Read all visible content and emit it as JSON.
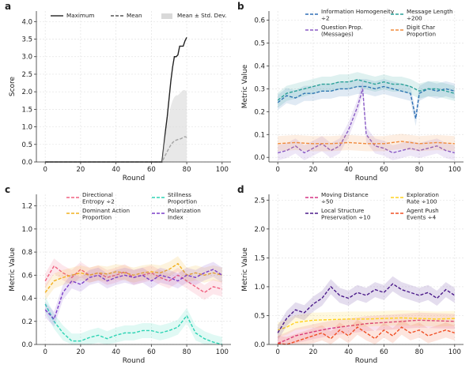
{
  "chart_data": [
    {
      "type": "line",
      "panel_label": "a",
      "xlabel": "Round",
      "ylabel": "Score",
      "xlim": [
        -5,
        105
      ],
      "ylim": [
        0,
        4.3
      ],
      "xticks": [
        0,
        20,
        40,
        60,
        80,
        100
      ],
      "yticks": [
        0.0,
        0.5,
        1.0,
        1.5,
        2.0,
        2.5,
        3.0,
        3.5,
        4.0
      ],
      "grid": true,
      "legend": "top",
      "series": [
        {
          "name": "Maximum",
          "color": "#222222",
          "style": "solid",
          "x": [
            0,
            66,
            67,
            68,
            69,
            70,
            71,
            72,
            73,
            74,
            75,
            76,
            77,
            78,
            79,
            80
          ],
          "y": [
            0,
            0,
            0.45,
            0.9,
            1.3,
            1.8,
            2.3,
            2.7,
            3.0,
            3.0,
            3.05,
            3.3,
            3.3,
            3.3,
            3.45,
            3.55
          ]
        },
        {
          "name": "Mean",
          "color": "#555555",
          "style": "dashed",
          "x": [
            0,
            66,
            67,
            68,
            69,
            70,
            71,
            72,
            73,
            74,
            75,
            76,
            77,
            78,
            79,
            80
          ],
          "y": [
            0,
            0,
            0.1,
            0.2,
            0.3,
            0.4,
            0.48,
            0.55,
            0.6,
            0.62,
            0.64,
            0.65,
            0.67,
            0.7,
            0.72,
            0.7
          ]
        },
        {
          "name": "Mean ± Std. Dev.",
          "color": "#d9d9d9",
          "style": "band",
          "x": [
            66,
            67,
            68,
            69,
            70,
            71,
            72,
            73,
            74,
            75,
            76,
            77,
            78,
            79,
            80
          ],
          "upper": [
            0,
            0.45,
            0.8,
            1.1,
            1.4,
            1.6,
            1.75,
            1.85,
            1.9,
            1.9,
            1.95,
            2.0,
            2.05,
            2.05,
            2.0
          ],
          "lower": [
            0,
            0,
            0,
            0,
            0,
            0,
            0,
            0,
            0,
            0,
            0,
            0,
            0,
            0,
            0
          ]
        }
      ]
    },
    {
      "type": "line",
      "panel_label": "b",
      "xlabel": "Round",
      "ylabel": "Metric Value",
      "xlim": [
        -5,
        105
      ],
      "ylim": [
        -0.02,
        0.64
      ],
      "xticks": [
        0,
        20,
        40,
        60,
        80,
        100
      ],
      "yticks": [
        0.0,
        0.1,
        0.2,
        0.3,
        0.4,
        0.5,
        0.6
      ],
      "grid": true,
      "legend": "top",
      "series": [
        {
          "name": "Information Homogeneity ÷2",
          "color": "#2f6fb5",
          "x": [
            0,
            5,
            10,
            15,
            20,
            25,
            30,
            35,
            40,
            45,
            50,
            55,
            60,
            65,
            70,
            75,
            78,
            80,
            85,
            90,
            95,
            100
          ],
          "y": [
            0.24,
            0.27,
            0.26,
            0.28,
            0.28,
            0.29,
            0.29,
            0.3,
            0.3,
            0.31,
            0.31,
            0.3,
            0.31,
            0.3,
            0.29,
            0.28,
            0.17,
            0.28,
            0.3,
            0.29,
            0.3,
            0.29
          ]
        },
        {
          "name": "Message Length ÷200",
          "color": "#2aa198",
          "x": [
            0,
            5,
            10,
            15,
            20,
            25,
            30,
            35,
            40,
            45,
            50,
            55,
            60,
            65,
            70,
            75,
            80,
            85,
            90,
            95,
            100
          ],
          "y": [
            0.25,
            0.28,
            0.29,
            0.3,
            0.31,
            0.32,
            0.32,
            0.33,
            0.33,
            0.34,
            0.33,
            0.32,
            0.33,
            0.32,
            0.32,
            0.31,
            0.29,
            0.3,
            0.3,
            0.29,
            0.28
          ]
        },
        {
          "name": "Question Prop. (Messages)",
          "color": "#8a5cc6",
          "x": [
            0,
            5,
            10,
            15,
            20,
            25,
            30,
            35,
            40,
            45,
            48,
            50,
            55,
            60,
            65,
            70,
            75,
            80,
            85,
            90,
            95,
            100
          ],
          "y": [
            0.02,
            0.03,
            0.05,
            0.02,
            0.04,
            0.06,
            0.03,
            0.05,
            0.12,
            0.22,
            0.3,
            0.1,
            0.05,
            0.04,
            0.02,
            0.03,
            0.04,
            0.03,
            0.04,
            0.05,
            0.03,
            0.02
          ]
        },
        {
          "name": "Digit Char Proportion",
          "color": "#f08a3c",
          "x": [
            0,
            10,
            20,
            30,
            40,
            50,
            60,
            70,
            80,
            90,
            100
          ],
          "y": [
            0.06,
            0.065,
            0.06,
            0.06,
            0.065,
            0.06,
            0.06,
            0.07,
            0.06,
            0.065,
            0.06
          ]
        }
      ]
    },
    {
      "type": "line",
      "panel_label": "c",
      "xlabel": "Round",
      "ylabel": "Metric Value",
      "xlim": [
        -5,
        105
      ],
      "ylim": [
        0,
        1.3
      ],
      "xticks": [
        0,
        20,
        40,
        60,
        80,
        100
      ],
      "yticks": [
        0.0,
        0.2,
        0.4,
        0.6,
        0.8,
        1.0,
        1.2
      ],
      "grid": true,
      "legend": "top",
      "series": [
        {
          "name": "Directional Entropy ÷2",
          "color": "#f06080",
          "x": [
            0,
            5,
            10,
            15,
            20,
            25,
            30,
            35,
            40,
            45,
            50,
            55,
            60,
            65,
            70,
            75,
            80,
            85,
            90,
            95,
            100
          ],
          "y": [
            0.55,
            0.68,
            0.62,
            0.58,
            0.65,
            0.6,
            0.62,
            0.58,
            0.6,
            0.63,
            0.58,
            0.6,
            0.62,
            0.58,
            0.55,
            0.6,
            0.55,
            0.5,
            0.45,
            0.5,
            0.48
          ]
        },
        {
          "name": "Stillness Proportion",
          "color": "#2dd4b4",
          "x": [
            0,
            5,
            10,
            15,
            20,
            25,
            30,
            35,
            40,
            45,
            50,
            55,
            60,
            65,
            70,
            75,
            80,
            85,
            90,
            95,
            100
          ],
          "y": [
            0.35,
            0.2,
            0.1,
            0.03,
            0.03,
            0.06,
            0.08,
            0.05,
            0.08,
            0.1,
            0.1,
            0.12,
            0.12,
            0.1,
            0.12,
            0.15,
            0.25,
            0.1,
            0.05,
            0.02,
            0.0
          ]
        },
        {
          "name": "Dominant Action Proportion",
          "color": "#f2b01e",
          "x": [
            0,
            5,
            10,
            15,
            20,
            25,
            30,
            35,
            40,
            45,
            50,
            55,
            60,
            65,
            70,
            75,
            80,
            85,
            90,
            95,
            100
          ],
          "y": [
            0.45,
            0.55,
            0.58,
            0.6,
            0.62,
            0.6,
            0.62,
            0.61,
            0.63,
            0.62,
            0.6,
            0.62,
            0.63,
            0.62,
            0.65,
            0.7,
            0.6,
            0.62,
            0.6,
            0.62,
            0.6
          ]
        },
        {
          "name": "Polarization Index",
          "color": "#7b3fc9",
          "x": [
            0,
            5,
            10,
            15,
            20,
            25,
            30,
            35,
            40,
            45,
            50,
            55,
            60,
            65,
            70,
            75,
            80,
            85,
            90,
            95,
            100
          ],
          "y": [
            0.3,
            0.22,
            0.45,
            0.55,
            0.52,
            0.58,
            0.6,
            0.55,
            0.58,
            0.6,
            0.58,
            0.6,
            0.55,
            0.6,
            0.58,
            0.55,
            0.6,
            0.58,
            0.62,
            0.65,
            0.6
          ]
        }
      ]
    },
    {
      "type": "line",
      "panel_label": "d",
      "xlabel": "Round",
      "ylabel": "Metric Value",
      "xlim": [
        -5,
        105
      ],
      "ylim": [
        0,
        2.6
      ],
      "xticks": [
        0,
        20,
        40,
        60,
        80,
        100
      ],
      "yticks": [
        0.0,
        0.5,
        1.0,
        1.5,
        2.0,
        2.5
      ],
      "grid": true,
      "legend": "top",
      "series": [
        {
          "name": "Moving Distance ÷50",
          "color": "#d63384",
          "x": [
            0,
            5,
            10,
            20,
            30,
            40,
            50,
            60,
            70,
            80,
            90,
            100
          ],
          "y": [
            0.02,
            0.08,
            0.15,
            0.22,
            0.28,
            0.32,
            0.36,
            0.38,
            0.4,
            0.42,
            0.41,
            0.4
          ]
        },
        {
          "name": "Exploration Rate ÷100",
          "color": "#ffd21f",
          "x": [
            0,
            5,
            10,
            20,
            30,
            40,
            50,
            60,
            70,
            80,
            90,
            100
          ],
          "y": [
            0.25,
            0.3,
            0.38,
            0.42,
            0.43,
            0.44,
            0.44,
            0.45,
            0.46,
            0.45,
            0.44,
            0.45
          ]
        },
        {
          "name": "Local Structure Preservation ÷10",
          "color": "#4b1a8a",
          "x": [
            0,
            5,
            10,
            15,
            20,
            25,
            30,
            35,
            40,
            45,
            50,
            55,
            60,
            65,
            70,
            75,
            80,
            85,
            90,
            95,
            100
          ],
          "y": [
            0.2,
            0.45,
            0.6,
            0.55,
            0.7,
            0.8,
            1.0,
            0.85,
            0.8,
            0.9,
            0.85,
            0.95,
            0.9,
            1.05,
            0.95,
            0.9,
            0.85,
            0.9,
            0.8,
            0.95,
            0.85
          ]
        },
        {
          "name": "Agent Push Events ÷4",
          "color": "#f04e23",
          "x": [
            0,
            5,
            10,
            15,
            20,
            25,
            30,
            35,
            40,
            45,
            50,
            55,
            60,
            65,
            70,
            75,
            80,
            85,
            90,
            95,
            100
          ],
          "y": [
            0.02,
            0.0,
            0.05,
            0.1,
            0.15,
            0.2,
            0.1,
            0.25,
            0.15,
            0.3,
            0.2,
            0.1,
            0.25,
            0.15,
            0.3,
            0.2,
            0.25,
            0.15,
            0.2,
            0.25,
            0.2
          ]
        }
      ]
    }
  ]
}
